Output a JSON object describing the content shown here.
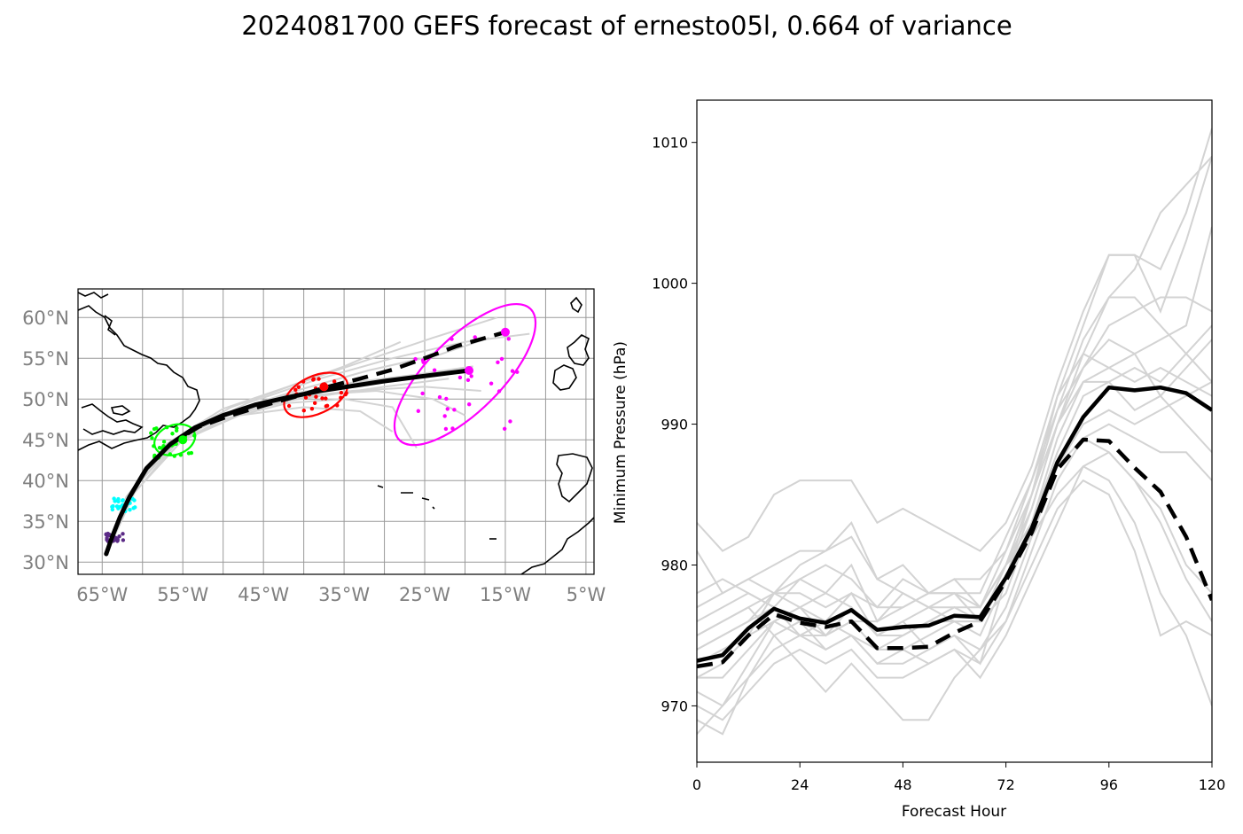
{
  "title": "2024081700 GEFS forecast of ernesto05l, 0.664 of variance",
  "chart_data": [
    {
      "type": "map-track",
      "panel": "track map",
      "lon_range": [
        -68,
        -4
      ],
      "lat_range": [
        28.5,
        63.5
      ],
      "lon_ticks": [
        -65,
        -55,
        -45,
        -35,
        -25,
        -15,
        -5
      ],
      "lon_tick_labels": [
        "65°W",
        "55°W",
        "45°W",
        "35°W",
        "25°W",
        "15°W",
        "5°W"
      ],
      "lat_ticks": [
        30,
        35,
        40,
        45,
        50,
        55,
        60
      ],
      "lat_tick_labels": [
        "30°N",
        "35°N",
        "40°N",
        "45°N",
        "50°N",
        "55°N",
        "60°N"
      ],
      "grid": true,
      "mean_track_solid": [
        [
          -64.5,
          31
        ],
        [
          -63.8,
          33
        ],
        [
          -62.8,
          35.5
        ],
        [
          -61.6,
          38
        ],
        [
          -59.5,
          41.5
        ],
        [
          -56.5,
          44.5
        ],
        [
          -53.5,
          46.5
        ],
        [
          -50,
          48
        ],
        [
          -46,
          49.3
        ],
        [
          -42,
          50.2
        ],
        [
          -38,
          51
        ],
        [
          -34,
          51.6
        ],
        [
          -30,
          52.2
        ],
        [
          -26,
          52.7
        ],
        [
          -19.5,
          53.5
        ]
      ],
      "mean_track_dashed": [
        [
          -64.5,
          31
        ],
        [
          -63.8,
          33
        ],
        [
          -62.8,
          35.5
        ],
        [
          -61.6,
          38
        ],
        [
          -59.5,
          41.5
        ],
        [
          -56.5,
          44.5
        ],
        [
          -53,
          46.6
        ],
        [
          -49,
          48
        ],
        [
          -45,
          49.2
        ],
        [
          -41,
          50.3
        ],
        [
          -37,
          51.5
        ],
        [
          -33,
          52.5
        ],
        [
          -29,
          53.6
        ],
        [
          -25,
          55
        ],
        [
          -21,
          56.5
        ],
        [
          -15,
          58.2
        ]
      ],
      "ensemble_tracks": [
        [
          [
            -64.5,
            31
          ],
          [
            -62,
            38
          ],
          [
            -57,
            44.5
          ],
          [
            -50,
            48.8
          ],
          [
            -42,
            51.5
          ],
          [
            -35,
            54
          ],
          [
            -28,
            57
          ]
        ],
        [
          [
            -64.5,
            31
          ],
          [
            -62,
            38
          ],
          [
            -56,
            45
          ],
          [
            -49,
            49
          ],
          [
            -41,
            51.8
          ],
          [
            -33,
            54.5
          ],
          [
            -24,
            57.5
          ],
          [
            -16,
            60
          ]
        ],
        [
          [
            -64.5,
            31
          ],
          [
            -62,
            38
          ],
          [
            -57,
            44
          ],
          [
            -50,
            48
          ],
          [
            -42,
            50.5
          ],
          [
            -34,
            52
          ],
          [
            -26,
            53
          ],
          [
            -19,
            54
          ]
        ],
        [
          [
            -64.5,
            31
          ],
          [
            -62,
            38
          ],
          [
            -57,
            44
          ],
          [
            -50,
            47.5
          ],
          [
            -42,
            49.5
          ],
          [
            -35,
            50
          ],
          [
            -29,
            49
          ],
          [
            -26,
            44
          ]
        ],
        [
          [
            -64.5,
            31
          ],
          [
            -62,
            38
          ],
          [
            -56,
            44.5
          ],
          [
            -48,
            48
          ],
          [
            -40,
            49
          ],
          [
            -33,
            48.5
          ],
          [
            -29,
            46
          ]
        ],
        [
          [
            -64.5,
            31
          ],
          [
            -61,
            38.5
          ],
          [
            -55,
            45.5
          ],
          [
            -47,
            49.5
          ],
          [
            -38,
            52.5
          ],
          [
            -29,
            55
          ],
          [
            -20,
            57
          ],
          [
            -12,
            58
          ]
        ],
        [
          [
            -64.5,
            31
          ],
          [
            -62,
            38
          ],
          [
            -57,
            44.3
          ],
          [
            -50,
            47.8
          ],
          [
            -42,
            50
          ],
          [
            -34,
            51
          ],
          [
            -25,
            51.5
          ],
          [
            -18,
            51
          ]
        ],
        [
          [
            -64.5,
            31
          ],
          [
            -62,
            38
          ],
          [
            -56,
            45
          ],
          [
            -49,
            48.5
          ],
          [
            -41,
            51
          ],
          [
            -32,
            53.5
          ],
          [
            -23,
            55.5
          ],
          [
            -17,
            57.5
          ]
        ],
        [
          [
            -64.5,
            31
          ],
          [
            -61.5,
            38
          ],
          [
            -55,
            45
          ],
          [
            -47,
            48.5
          ],
          [
            -39,
            50.5
          ],
          [
            -31,
            51
          ],
          [
            -24,
            50
          ],
          [
            -20,
            48
          ]
        ],
        [
          [
            -64.5,
            31
          ],
          [
            -62,
            38
          ],
          [
            -57,
            44
          ],
          [
            -51,
            47.5
          ],
          [
            -44,
            49.5
          ],
          [
            -37,
            50.5
          ],
          [
            -30,
            51.5
          ],
          [
            -22,
            52.5
          ]
        ]
      ],
      "ensemble_points": [
        {
          "color": "#5b2a86",
          "center": [
            -63.5,
            33
          ],
          "spread": [
            1.2,
            0.5
          ]
        },
        {
          "color": "#00ffff",
          "center": [
            -62.3,
            37
          ],
          "spread": [
            1.5,
            0.8
          ]
        },
        {
          "color": "#00ff00",
          "center": [
            -56,
            44.8
          ],
          "spread": [
            3.0,
            2.0
          ]
        },
        {
          "color": "#ff0000",
          "center": [
            -38.5,
            50.5
          ],
          "spread": [
            4.0,
            2.0
          ]
        },
        {
          "color": "#ff00ff",
          "center": [
            -20,
            52
          ],
          "spread": [
            7.0,
            6.0
          ]
        }
      ],
      "ellipses": [
        {
          "color": "#00ff00",
          "center": [
            -56,
            45
          ],
          "semi_axes_deg": [
            2.6,
            1.8
          ],
          "angle": 20
        },
        {
          "color": "#ff0000",
          "center": [
            -38.5,
            50.5
          ],
          "semi_axes_deg": [
            4.2,
            2.3
          ],
          "angle": 25
        },
        {
          "color": "#ff00ff",
          "center": [
            -20,
            53
          ],
          "semi_axes_deg": [
            11.5,
            4.5
          ],
          "angle": 45
        }
      ],
      "highlight_points": [
        {
          "color": "#ff00ff",
          "points": [
            [
              -15,
              58.2
            ],
            [
              -19.5,
              53.5
            ]
          ]
        },
        {
          "color": "#ff0000",
          "points": [
            [
              -37.5,
              51.5
            ]
          ]
        },
        {
          "color": "#00ff00",
          "points": [
            [
              -55,
              45
            ]
          ]
        }
      ]
    },
    {
      "type": "line",
      "panel": "pressure",
      "xlabel": "Forecast Hour",
      "ylabel": "Minimum Pressure (hPa)",
      "xlim": [
        0,
        120
      ],
      "ylim": [
        966,
        1013
      ],
      "x_ticks": [
        0,
        24,
        48,
        72,
        96,
        120
      ],
      "y_ticks": [
        970,
        980,
        990,
        1000,
        1010
      ],
      "x": [
        0,
        6,
        12,
        18,
        24,
        30,
        36,
        42,
        48,
        54,
        60,
        66,
        72,
        78,
        84,
        90,
        96,
        102,
        108,
        114,
        120
      ],
      "series": [
        {
          "style": "solid-black",
          "values": [
            973.2,
            973.6,
            975.5,
            976.9,
            976.2,
            975.9,
            976.8,
            975.4,
            975.6,
            975.7,
            976.4,
            976.3,
            979.1,
            982.6,
            987.3,
            990.5,
            992.6,
            992.4,
            992.6,
            992.2,
            991.0
          ]
        },
        {
          "style": "dashed-black",
          "values": [
            972.8,
            973.1,
            975.0,
            976.5,
            975.9,
            975.6,
            976.0,
            974.1,
            974.1,
            974.2,
            975.2,
            976.0,
            978.9,
            982.3,
            986.8,
            988.9,
            988.8,
            986.9,
            985.2,
            982.0,
            977.5
          ]
        }
      ],
      "ensemble_members": [
        [
          983,
          981,
          982,
          985,
          986,
          986,
          986,
          983,
          984,
          983,
          982,
          981,
          983,
          987,
          993,
          998,
          1002,
          1002,
          1001,
          1005,
          1011
        ],
        [
          981,
          978,
          979,
          978,
          977,
          976,
          978,
          975,
          976,
          974,
          975,
          973,
          979,
          985,
          992,
          997,
          1002,
          1002,
          998,
          1003,
          1009
        ],
        [
          977,
          978,
          979,
          980,
          981,
          981,
          982,
          979,
          980,
          978,
          979,
          977,
          980,
          985,
          990,
          995,
          999,
          1001,
          1005,
          1007,
          1009
        ],
        [
          975,
          976,
          977,
          978,
          979,
          978,
          980,
          976,
          978,
          977,
          978,
          976,
          979,
          984,
          990,
          994,
          997,
          998,
          999,
          999,
          998
        ],
        [
          974,
          975,
          976,
          977,
          979,
          980,
          979,
          977,
          979,
          978,
          978,
          977,
          981,
          986,
          991,
          994,
          996,
          995,
          996,
          997,
          1004
        ],
        [
          973,
          974,
          975,
          978,
          980,
          981,
          983,
          979,
          978,
          977,
          976,
          976,
          980,
          984,
          990,
          993,
          993,
          994,
          993,
          995,
          997
        ],
        [
          972,
          972,
          974,
          976,
          977,
          978,
          977,
          975,
          975,
          976,
          976,
          975,
          979,
          983,
          988,
          992,
          993,
          991,
          992,
          994,
          996
        ],
        [
          971,
          970,
          972,
          974,
          975,
          976,
          975,
          973,
          973,
          974,
          975,
          974,
          977,
          982,
          987,
          990,
          991,
          990,
          991,
          992,
          993
        ],
        [
          970,
          969,
          971,
          973,
          974,
          973,
          974,
          972,
          972,
          973,
          974,
          973,
          976,
          981,
          986,
          989,
          990,
          989,
          988,
          988,
          986
        ],
        [
          969,
          968,
          972,
          975,
          976,
          974,
          975,
          974,
          974,
          975,
          976,
          976,
          980,
          983,
          987,
          989,
          988,
          986,
          984,
          980,
          978
        ],
        [
          968,
          970,
          973,
          976,
          977,
          975,
          977,
          975,
          976,
          977,
          977,
          977,
          980,
          982,
          985,
          987,
          986,
          983,
          978,
          975,
          970
        ],
        [
          975,
          976,
          977,
          975,
          973,
          971,
          973,
          971,
          969,
          969,
          972,
          974,
          976,
          980,
          984,
          986,
          985,
          981,
          975,
          976,
          975
        ],
        [
          976,
          977,
          978,
          977,
          975,
          974,
          975,
          973,
          974,
          973,
          974,
          972,
          975,
          979,
          983,
          987,
          988,
          986,
          983,
          979,
          976
        ],
        [
          972,
          973,
          975,
          976,
          975,
          975,
          976,
          974,
          975,
          976,
          977,
          976,
          978,
          983,
          989,
          993,
          994,
          995,
          992,
          990,
          988
        ],
        [
          974,
          975,
          976,
          978,
          978,
          977,
          978,
          977,
          977,
          978,
          979,
          979,
          981,
          985,
          991,
          996,
          999,
          999,
          997,
          995,
          993
        ],
        [
          978,
          979,
          978,
          977,
          976,
          975,
          976,
          976,
          977,
          978,
          978,
          978,
          982,
          986,
          992,
          995,
          994,
          993,
          994,
          993,
          992
        ]
      ]
    }
  ]
}
